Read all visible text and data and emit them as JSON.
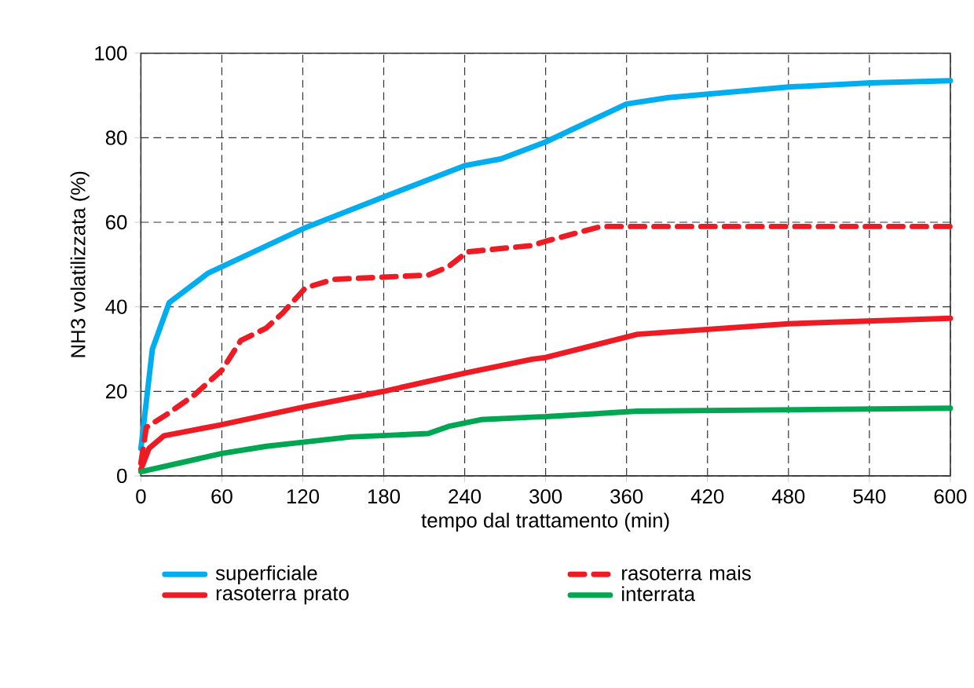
{
  "chart_data": {
    "type": "line",
    "xlabel": "tempo dal trattamento (min)",
    "ylabel": "NH3 volatilizzata (%)",
    "xlim": [
      0,
      600
    ],
    "xticks": [
      0,
      60,
      120,
      180,
      240,
      300,
      360,
      420,
      480,
      540,
      600
    ],
    "ylim": [
      0,
      100
    ],
    "yticks": [
      0,
      20,
      40,
      60,
      80,
      100
    ],
    "grid": true,
    "legend": "bottom",
    "marker": "none",
    "series": [
      {
        "name": "superficiale",
        "color": "#00aeef",
        "line_style": "solid",
        "x": [
          0,
          8.5,
          21,
          50,
          121,
          180,
          240,
          267,
          300,
          360,
          391,
          480,
          541,
          600
        ],
        "values": [
          6.5,
          30,
          41,
          48,
          58.6,
          66,
          73.4,
          75,
          79,
          88,
          89.5,
          92,
          93,
          93.5
        ]
      },
      {
        "name": "rasoterra mais",
        "color": "#ed1c24",
        "line_style": "dashed",
        "x": [
          0,
          4,
          19,
          39,
          60,
          74,
          93,
          105,
          122,
          143,
          213,
          228,
          242,
          290,
          300,
          341,
          600
        ],
        "values": [
          3,
          11.5,
          14.5,
          19,
          25,
          32,
          35,
          38.5,
          44.5,
          46.5,
          47.5,
          49.5,
          53,
          54.5,
          55.5,
          59,
          59
        ]
      },
      {
        "name": "rasoterra prato",
        "color": "#ed1c24",
        "line_style": "solid",
        "x": [
          0,
          6,
          17,
          58,
          121,
          180,
          240,
          290,
          300,
          368,
          480,
          600
        ],
        "values": [
          1.5,
          6.5,
          9.5,
          12,
          16.3,
          20,
          24.3,
          27.6,
          28,
          33.5,
          36,
          37.3
        ]
      },
      {
        "name": "interrata",
        "color": "#00a651",
        "line_style": "solid",
        "x": [
          0,
          60,
          93,
          121,
          155,
          213,
          228,
          252,
          290,
          300,
          368,
          600
        ],
        "values": [
          1,
          5.3,
          7,
          8,
          9.2,
          10,
          11.7,
          13.3,
          13.9,
          14,
          15.3,
          16
        ]
      }
    ]
  }
}
